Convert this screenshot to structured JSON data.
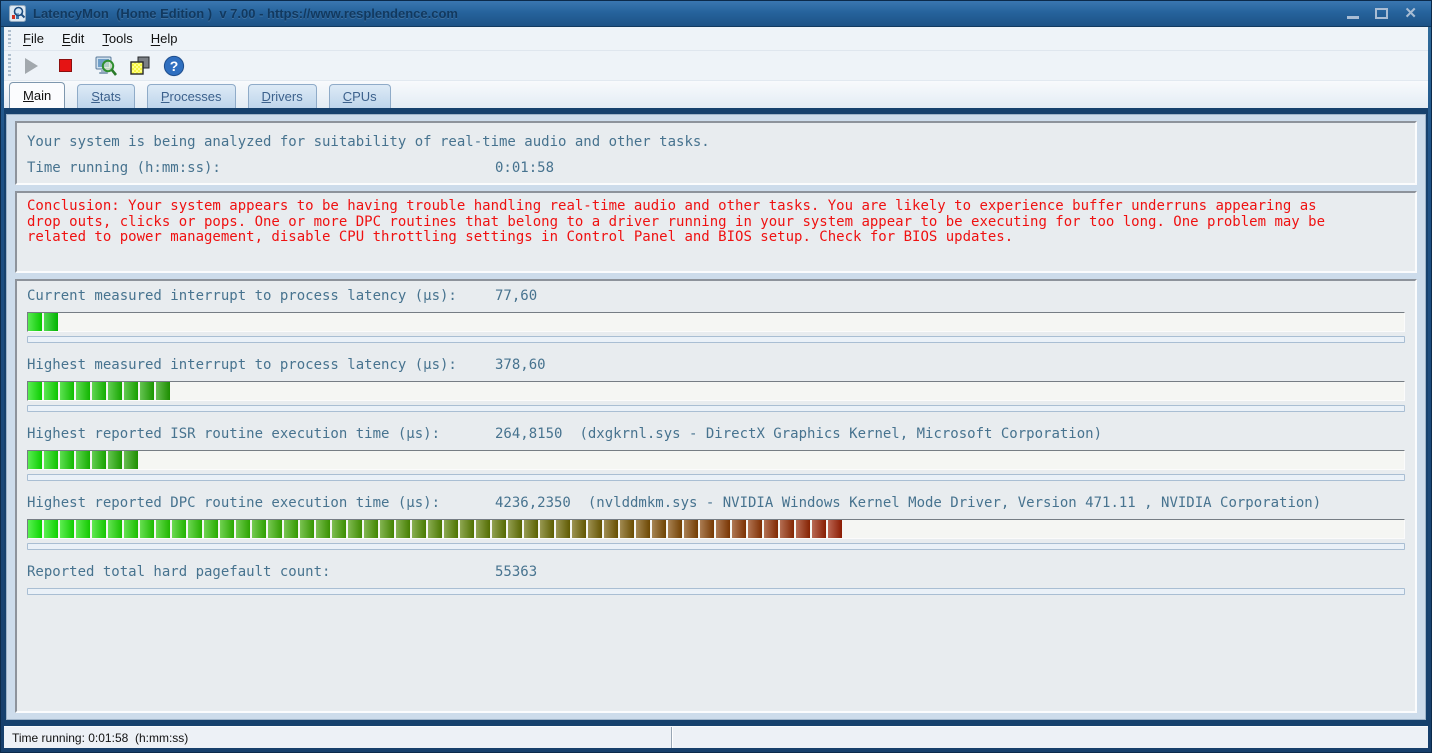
{
  "window": {
    "title": "LatencyMon  (Home Edition )  v 7.00 - https://www.resplendence.com"
  },
  "menu": {
    "items": [
      {
        "label": "File"
      },
      {
        "label": "Edit"
      },
      {
        "label": "Tools"
      },
      {
        "label": "Help"
      }
    ]
  },
  "toolbar": {
    "icons": [
      "play-icon",
      "stop-icon",
      "analyze-icon",
      "processes-icon",
      "help-icon"
    ]
  },
  "tabs": [
    {
      "label": "Main",
      "active": true
    },
    {
      "label": "Stats",
      "active": false
    },
    {
      "label": "Processes",
      "active": false
    },
    {
      "label": "Drivers",
      "active": false
    },
    {
      "label": "CPUs",
      "active": false
    }
  ],
  "analysis": {
    "status_line": "Your system is being analyzed for suitability of real-time audio and other tasks.",
    "time_running_label": "Time running (h:mm:ss):",
    "time_running_value": "0:01:58"
  },
  "conclusion": "Conclusion: Your system appears to be having trouble handling real-time audio and other tasks. You are likely to experience buffer underruns appearing as drop outs, clicks or pops. One or more DPC routines that belong to a driver running in your system appear to be executing for too long. One problem may be related to power management, disable CPU throttling settings in Control Panel and BIOS setup. Check for BIOS updates.",
  "metrics": [
    {
      "label": "Current measured interrupt to process latency (µs):",
      "value": "77,60",
      "info": "",
      "has_bar": true,
      "segments": 2,
      "color_start": "#0ae000",
      "color_end": "#00c800"
    },
    {
      "label": "Highest measured interrupt to process latency (µs):",
      "value": "378,60",
      "info": "",
      "has_bar": true,
      "segments": 9,
      "color_start": "#0ce400",
      "color_end": "#1f9e00"
    },
    {
      "label": "Highest reported ISR routine execution time (µs):",
      "value": "264,8150",
      "info": "(dxgkrnl.sys - DirectX Graphics Kernel, Microsoft Corporation)",
      "has_bar": true,
      "segments": 7,
      "color_start": "#0ce400",
      "color_end": "#219e00"
    },
    {
      "label": "Highest reported DPC routine execution time (µs):",
      "value": "4236,2350",
      "info": "(nvlddmkm.sys - NVIDIA Windows Kernel Mode Driver, Version 471.11 , NVIDIA Corporation)",
      "has_bar": true,
      "segments": 51,
      "color_start": "#0cec00",
      "color_end": "#9a1e02"
    },
    {
      "label": "Reported total hard pagefault count:",
      "value": "55363",
      "info": "",
      "has_bar": false,
      "segments": 0,
      "color_start": "#0ae000",
      "color_end": "#00c800"
    }
  ],
  "status_bar": {
    "text": "Time running: 0:01:58  (h:mm:ss)"
  }
}
